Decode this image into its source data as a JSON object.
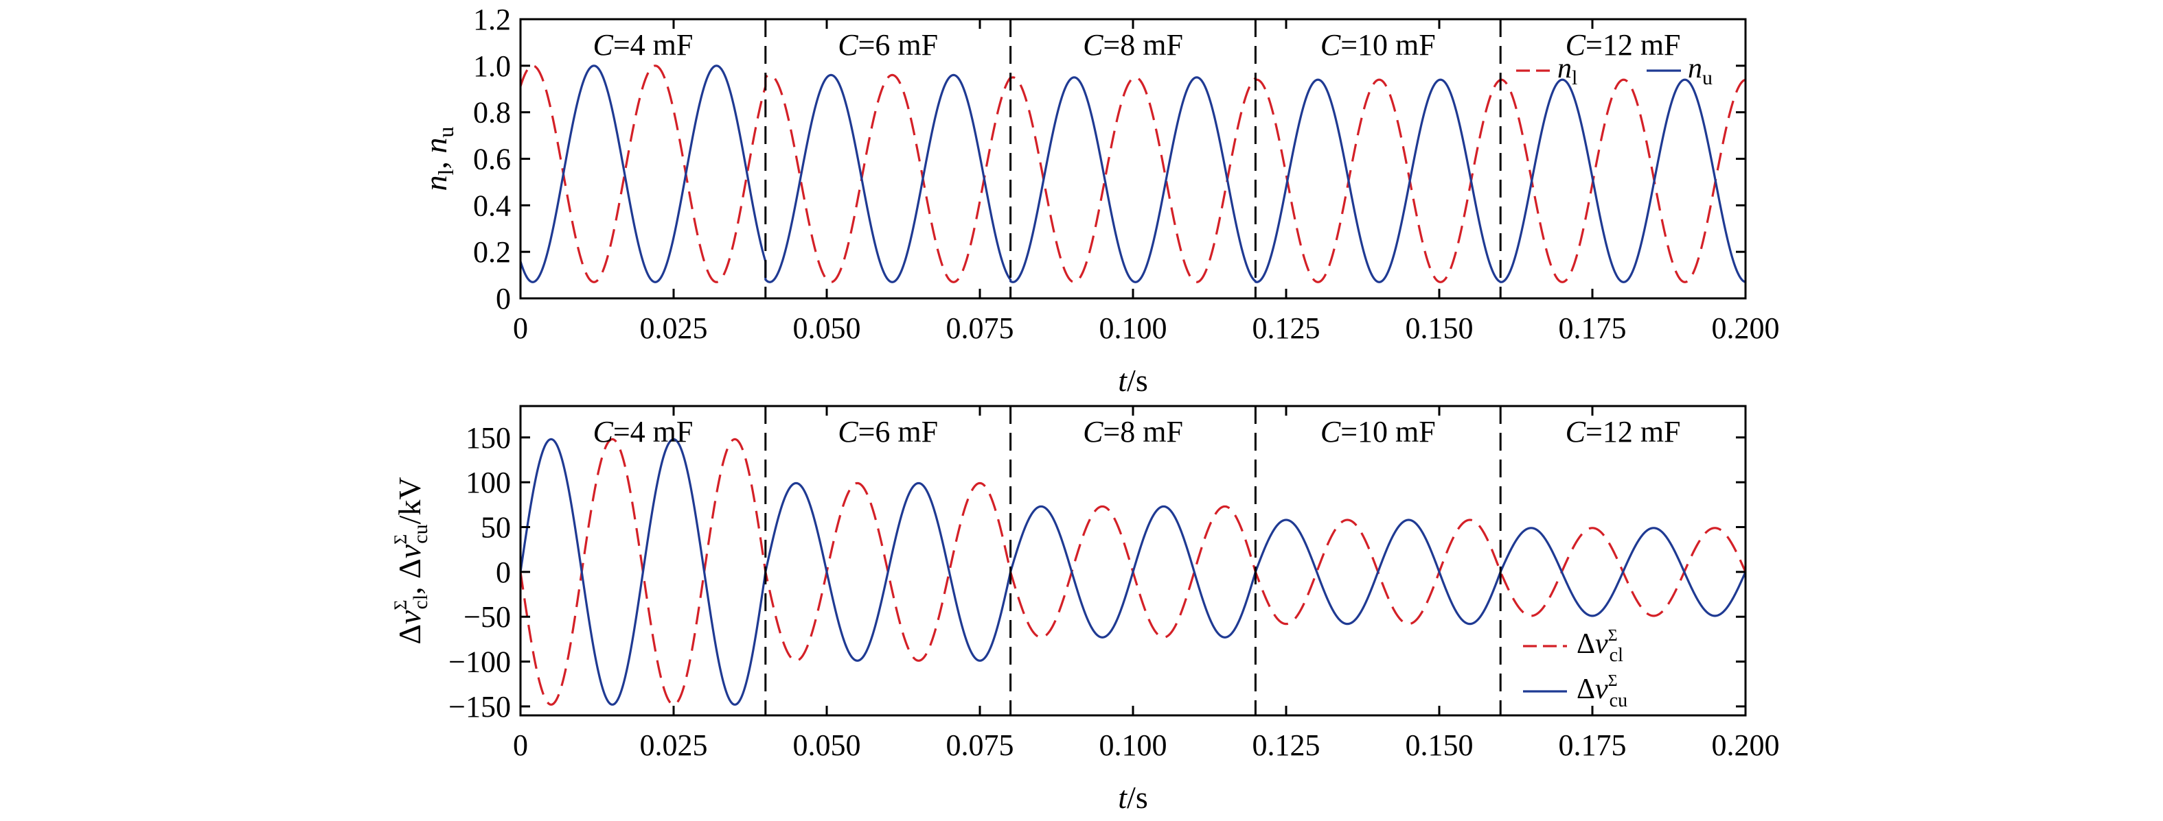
{
  "chart_data": [
    {
      "type": "line",
      "ylabel_parts": [
        "n",
        "l",
        ", ",
        "n",
        "u"
      ],
      "xlabel_parts": [
        "t",
        "/s"
      ],
      "xlim": [
        0,
        0.2
      ],
      "ylim": [
        0,
        1.2
      ],
      "x_ticks": [
        0,
        0.025,
        0.05,
        0.075,
        0.1,
        0.125,
        0.15,
        0.175,
        0.2
      ],
      "x_tick_labels": [
        "0",
        "0.025",
        "0.050",
        "0.075",
        "0.100",
        "0.125",
        "0.150",
        "0.175",
        "0.200"
      ],
      "y_ticks": [
        0,
        0.2,
        0.4,
        0.6,
        0.8,
        1.0,
        1.2
      ],
      "y_tick_labels": [
        "0",
        "0.2",
        "0.4",
        "0.6",
        "0.8",
        "1.0",
        "1.2"
      ],
      "segment_boundaries": [
        0.04,
        0.08,
        0.12,
        0.16
      ],
      "segment_labels": [
        {
          "var": "C",
          "text": "=4 mF"
        },
        {
          "var": "C",
          "text": "=6 mF"
        },
        {
          "var": "C",
          "text": "=8 mF"
        },
        {
          "var": "C",
          "text": "=10 mF"
        },
        {
          "var": "C",
          "text": "=12 mF"
        }
      ],
      "legend": {
        "placement": "top-right",
        "entries": [
          {
            "var": "n",
            "sub": "l",
            "style": "dashed",
            "color": "#d42027"
          },
          {
            "var": "n",
            "sub": "u",
            "style": "solid",
            "color": "#1f3a93"
          }
        ]
      },
      "series": [
        {
          "style": "dashed",
          "color": "#d42027",
          "segments": [
            {
              "center": 0.535,
              "amplitude": 0.465,
              "period": 0.02,
              "phase": 0.002
            },
            {
              "center": 0.515,
              "amplitude": 0.445,
              "period": 0.02,
              "phase": 0.0007
            },
            {
              "center": 0.51,
              "amplitude": 0.44,
              "period": 0.02,
              "phase": 0.0004
            },
            {
              "center": 0.505,
              "amplitude": 0.435,
              "period": 0.02,
              "phase": 0.0002
            },
            {
              "center": 0.505,
              "amplitude": 0.435,
              "period": 0.02,
              "phase": 0.0001
            }
          ]
        },
        {
          "style": "solid",
          "color": "#1f3a93",
          "segments": [
            {
              "center": 0.535,
              "amplitude": 0.465,
              "period": 0.02,
              "phase": 0.012
            },
            {
              "center": 0.515,
              "amplitude": 0.445,
              "period": 0.02,
              "phase": 0.0107
            },
            {
              "center": 0.51,
              "amplitude": 0.44,
              "period": 0.02,
              "phase": 0.0104
            },
            {
              "center": 0.505,
              "amplitude": 0.435,
              "period": 0.02,
              "phase": 0.0102
            },
            {
              "center": 0.505,
              "amplitude": 0.435,
              "period": 0.02,
              "phase": 0.0101
            }
          ]
        }
      ]
    },
    {
      "type": "line",
      "ylabel_parts": [
        "Δ",
        "v",
        "cl",
        "Σ",
        ", Δ",
        "v",
        "cu",
        "Σ",
        "/kV"
      ],
      "xlabel_parts": [
        "t",
        "/s"
      ],
      "xlim": [
        0,
        0.2
      ],
      "ylim": [
        -160,
        185
      ],
      "x_ticks": [
        0,
        0.025,
        0.05,
        0.075,
        0.1,
        0.125,
        0.15,
        0.175,
        0.2
      ],
      "x_tick_labels": [
        "0",
        "0.025",
        "0.050",
        "0.075",
        "0.100",
        "0.125",
        "0.150",
        "0.175",
        "0.200"
      ],
      "y_ticks": [
        -150,
        -100,
        -50,
        0,
        50,
        100,
        150
      ],
      "y_tick_labels": [
        "−150",
        "−100",
        "−50",
        "0",
        "50",
        "100",
        "150"
      ],
      "segment_boundaries": [
        0.04,
        0.08,
        0.12,
        0.16
      ],
      "segment_labels": [
        {
          "var": "C",
          "text": "=4 mF"
        },
        {
          "var": "C",
          "text": "=6 mF"
        },
        {
          "var": "C",
          "text": "=8 mF"
        },
        {
          "var": "C",
          "text": "=10 mF"
        },
        {
          "var": "C",
          "text": "=12 mF"
        }
      ],
      "legend": {
        "placement": "bottom-right",
        "entries": [
          {
            "prefix": "Δ",
            "var": "v",
            "sub": "cl",
            "sup": "Σ",
            "style": "dashed",
            "color": "#d42027"
          },
          {
            "prefix": "Δ",
            "var": "v",
            "sub": "cu",
            "sup": "Σ",
            "style": "solid",
            "color": "#1f3a93"
          }
        ]
      },
      "series": [
        {
          "style": "dashed",
          "color": "#d42027",
          "segments": [
            {
              "amplitude": -148,
              "period": 0.02
            },
            {
              "amplitude": -99,
              "period": 0.02
            },
            {
              "amplitude": -73,
              "period": 0.02
            },
            {
              "amplitude": -58,
              "period": 0.02
            },
            {
              "amplitude": -49,
              "period": 0.02
            }
          ]
        },
        {
          "style": "solid",
          "color": "#1f3a93",
          "segments": [
            {
              "amplitude": 148,
              "period": 0.02
            },
            {
              "amplitude": 99,
              "period": 0.02
            },
            {
              "amplitude": 73,
              "period": 0.02
            },
            {
              "amplitude": 58,
              "period": 0.02
            },
            {
              "amplitude": 49,
              "period": 0.02
            }
          ]
        }
      ]
    }
  ]
}
